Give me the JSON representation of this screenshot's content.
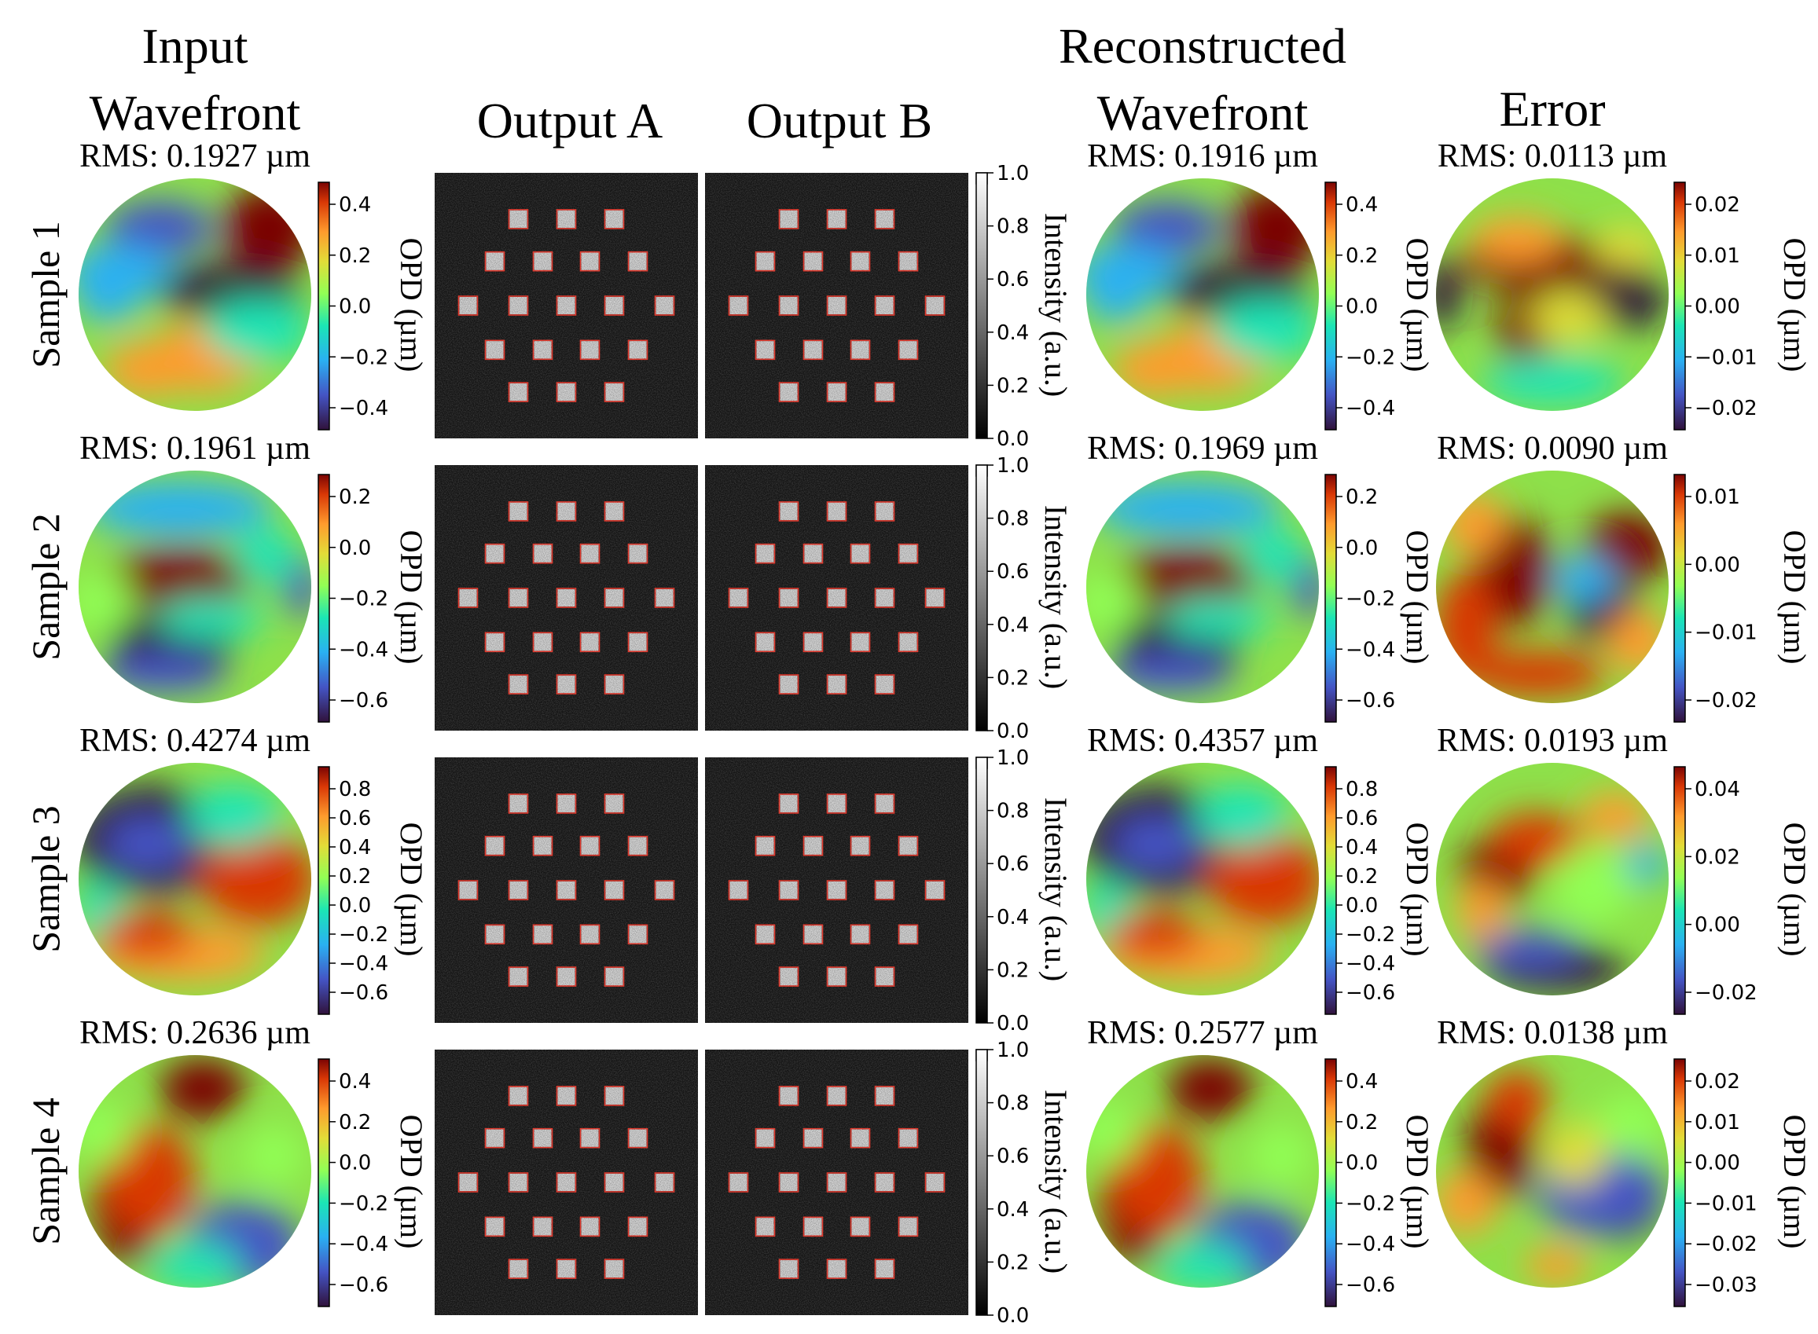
{
  "headers": {
    "input": [
      "Input",
      "Wavefront"
    ],
    "output_a": "Output A",
    "output_b": "Output B",
    "reconstructed": [
      "Reconstructed",
      "Wavefront"
    ],
    "error": "Error"
  },
  "colorbar_labels": {
    "opd": "OPD (µm)",
    "intensity": "Intensity (a.u.)"
  },
  "intensity_ticks": [
    "0.0",
    "0.2",
    "0.4",
    "0.6",
    "0.8",
    "1.0"
  ],
  "samples": [
    {
      "label": "Sample 1",
      "input_rms": "RMS: 0.1927 µm",
      "recon_rms": "RMS: 0.1916 µm",
      "error_rms": "RMS: 0.0113 µm",
      "input_ticks": [
        "0.4",
        "0.2",
        "0.0",
        "−0.2",
        "−0.4"
      ],
      "recon_ticks": [
        "0.4",
        "0.2",
        "0.0",
        "−0.2",
        "−0.4"
      ],
      "error_ticks": [
        "0.02",
        "0.01",
        "0.00",
        "−0.01",
        "−0.02"
      ]
    },
    {
      "label": "Sample 2",
      "input_rms": "RMS: 0.1961 µm",
      "recon_rms": "RMS: 0.1969 µm",
      "error_rms": "RMS: 0.0090 µm",
      "input_ticks": [
        "0.2",
        "0.0",
        "−0.2",
        "−0.4",
        "−0.6"
      ],
      "recon_ticks": [
        "0.2",
        "0.0",
        "−0.2",
        "−0.4",
        "−0.6"
      ],
      "error_ticks": [
        "0.01",
        "0.00",
        "−0.01",
        "−0.02"
      ]
    },
    {
      "label": "Sample 3",
      "input_rms": "RMS: 0.4274 µm",
      "recon_rms": "RMS: 0.4357 µm",
      "error_rms": "RMS: 0.0193 µm",
      "input_ticks": [
        "0.8",
        "0.6",
        "0.4",
        "0.2",
        "0.0",
        "−0.2",
        "−0.4",
        "−0.6"
      ],
      "recon_ticks": [
        "0.8",
        "0.6",
        "0.4",
        "0.2",
        "0.0",
        "−0.2",
        "−0.4",
        "−0.6"
      ],
      "error_ticks": [
        "0.04",
        "0.02",
        "0.00",
        "−0.02"
      ]
    },
    {
      "label": "Sample 4",
      "input_rms": "RMS: 0.2636 µm",
      "recon_rms": "RMS: 0.2577 µm",
      "error_rms": "RMS: 0.0138 µm",
      "input_ticks": [
        "0.4",
        "0.2",
        "0.0",
        "−0.2",
        "−0.4",
        "−0.6"
      ],
      "recon_ticks": [
        "0.4",
        "0.2",
        "0.0",
        "−0.2",
        "−0.4",
        "−0.6"
      ],
      "error_ticks": [
        "0.02",
        "0.01",
        "0.00",
        "−0.01",
        "−0.02",
        "−0.03"
      ]
    }
  ]
}
